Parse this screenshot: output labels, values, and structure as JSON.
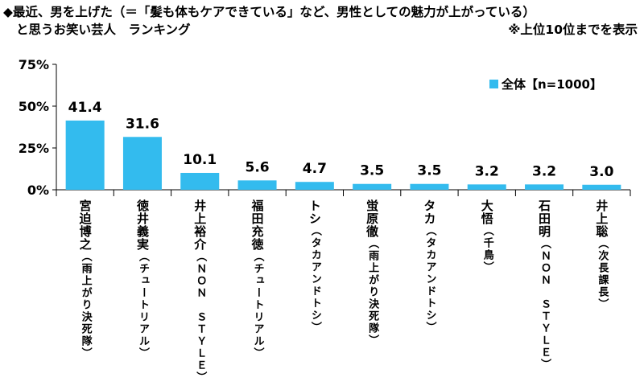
{
  "header": {
    "title_line1": "◆最近、男を上げた（＝「髪も体もケアできている」など、男性としての魅力が上がっている）",
    "title_line2": "と思うお笑い芸人　ランキング",
    "note": "※上位10位までを表示"
  },
  "chart_data": {
    "type": "bar",
    "categories": [
      "宮迫博之",
      "徳井義実",
      "井上裕介",
      "福田充徳",
      "トシ",
      "蛍原徹",
      "タカ",
      "大悟",
      "石田明",
      "井上聡"
    ],
    "category_subs": [
      "（雨上がり決死隊）",
      "（チュートリアル）",
      "（ＮＯＮ　ＳＴＹＬＥ）",
      "（チュートリアル）",
      "（タカアンドトシ）",
      "（雨上がり決死隊）",
      "（タカアンドトシ）",
      "（千鳥）",
      "（ＮＯＮ　ＳＴＹＬＥ）",
      "（次長課長）"
    ],
    "series": [
      {
        "name": "全体【n=1000】",
        "values": [
          41.4,
          31.6,
          10.1,
          5.6,
          4.7,
          3.5,
          3.5,
          3.2,
          3.2,
          3.0
        ]
      }
    ],
    "value_labels": [
      "41.4",
      "31.6",
      "10.1",
      "5.6",
      "4.7",
      "3.5",
      "3.5",
      "3.2",
      "3.2",
      "3.0"
    ],
    "ylim": [
      0,
      75
    ],
    "yticks": [
      0,
      25,
      50,
      75
    ],
    "ytick_labels": [
      "0%",
      "25%",
      "50%",
      "75%"
    ],
    "legend_position": "top-right",
    "grid": false,
    "bar_color": "#33bbee"
  }
}
